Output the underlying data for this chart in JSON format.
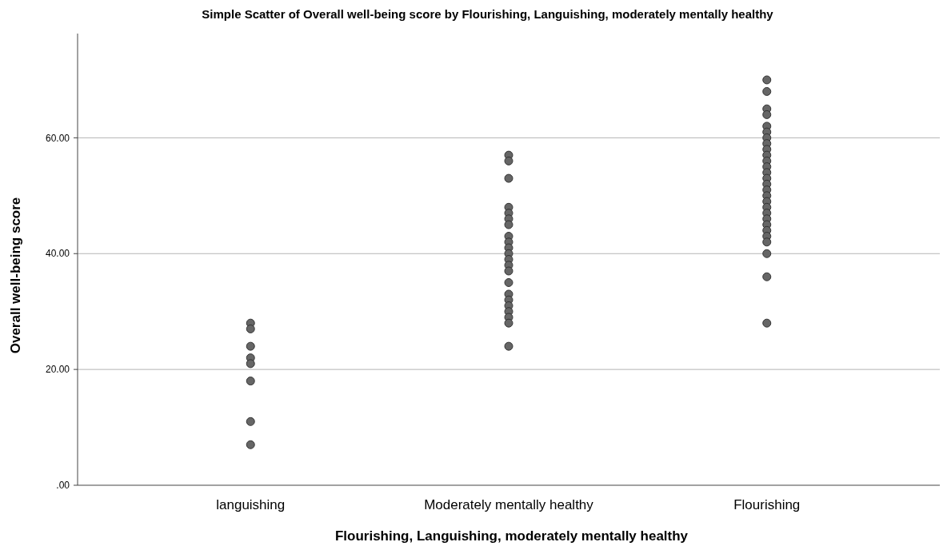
{
  "chart_data": {
    "type": "scatter",
    "title": "Simple Scatter of Overall well-being score by Flourishing, Languishing, moderately mentally healthy",
    "xlabel": "Flourishing, Languishing, moderately mentally healthy",
    "ylabel": "Overall well-being score",
    "categories": [
      "languishing",
      "Moderately mentally healthy",
      "Flourishing"
    ],
    "ylim": [
      0,
      78
    ],
    "yticks": [
      {
        "value": 0,
        "label": ".00"
      },
      {
        "value": 20,
        "label": "20.00"
      },
      {
        "value": 40,
        "label": "40.00"
      },
      {
        "value": 60,
        "label": "60.00"
      }
    ],
    "grid": "y",
    "marker": "circle",
    "series": [
      {
        "color": "#666666",
        "x": [
          "languishing",
          "languishing",
          "languishing",
          "languishing",
          "languishing",
          "languishing",
          "languishing",
          "languishing"
        ],
        "values": [
          28,
          27,
          24,
          22,
          21,
          18,
          11,
          7
        ]
      },
      {
        "color": "#666666",
        "x": [
          "Moderately mentally healthy",
          "Moderately mentally healthy",
          "Moderately mentally healthy",
          "Moderately mentally healthy",
          "Moderately mentally healthy",
          "Moderately mentally healthy",
          "Moderately mentally healthy",
          "Moderately mentally healthy",
          "Moderately mentally healthy",
          "Moderately mentally healthy",
          "Moderately mentally healthy",
          "Moderately mentally healthy",
          "Moderately mentally healthy",
          "Moderately mentally healthy",
          "Moderately mentally healthy",
          "Moderately mentally healthy",
          "Moderately mentally healthy",
          "Moderately mentally healthy",
          "Moderately mentally healthy",
          "Moderately mentally healthy",
          "Moderately mentally healthy",
          "Moderately mentally healthy"
        ],
        "values": [
          57,
          56,
          53,
          48,
          47,
          46,
          45,
          43,
          42,
          41,
          40,
          39,
          38,
          37,
          35,
          33,
          32,
          31,
          30,
          29,
          28,
          24
        ]
      },
      {
        "color": "#666666",
        "x": [
          "Flourishing",
          "Flourishing",
          "Flourishing",
          "Flourishing",
          "Flourishing",
          "Flourishing",
          "Flourishing",
          "Flourishing",
          "Flourishing",
          "Flourishing",
          "Flourishing",
          "Flourishing",
          "Flourishing",
          "Flourishing",
          "Flourishing",
          "Flourishing",
          "Flourishing",
          "Flourishing",
          "Flourishing",
          "Flourishing",
          "Flourishing",
          "Flourishing",
          "Flourishing",
          "Flourishing",
          "Flourishing",
          "Flourishing",
          "Flourishing",
          "Flourishing"
        ],
        "values": [
          70,
          68,
          65,
          64,
          62,
          61,
          60,
          59,
          58,
          57,
          56,
          55,
          54,
          53,
          52,
          51,
          50,
          49,
          48,
          47,
          46,
          45,
          44,
          43,
          42,
          40,
          36,
          28
        ]
      }
    ]
  }
}
